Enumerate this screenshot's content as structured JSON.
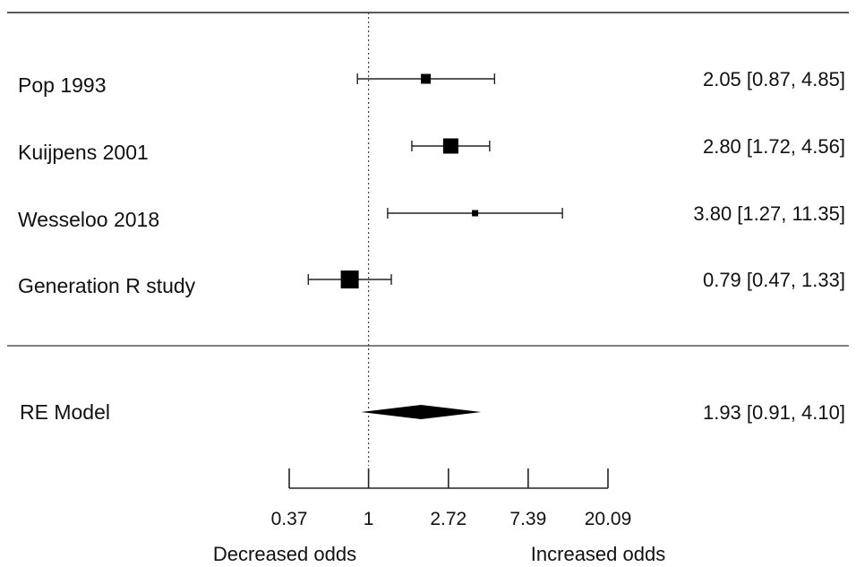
{
  "chart_data": {
    "type": "forest",
    "xscale": "log",
    "xlabel": "",
    "ylabel": "",
    "xlim": [
      0.37,
      20.09
    ],
    "reference_line": 1,
    "ticks": [
      {
        "value": 0.37,
        "label": "0.37"
      },
      {
        "value": 1,
        "label": "1"
      },
      {
        "value": 2.72,
        "label": "2.72"
      },
      {
        "value": 7.39,
        "label": "7.39"
      },
      {
        "value": 20.09,
        "label": "20.09"
      }
    ],
    "studies": [
      {
        "name": "Pop 1993",
        "estimate": 2.05,
        "lower": 0.87,
        "upper": 4.85,
        "ci_text": "2.05 [0.87,  4.85]",
        "weight": 0.55
      },
      {
        "name": "Kuijpens 2001",
        "estimate": 2.8,
        "lower": 1.72,
        "upper": 4.56,
        "ci_text": "2.80 [1.72,  4.56]",
        "weight": 0.85
      },
      {
        "name": "Wesseloo 2018",
        "estimate": 3.8,
        "lower": 1.27,
        "upper": 11.35,
        "ci_text": "3.80 [1.27, 11.35]",
        "weight": 0.3
      },
      {
        "name": "Generation R study",
        "estimate": 0.79,
        "lower": 0.47,
        "upper": 1.33,
        "ci_text": "0.79 [0.47,  1.33]",
        "weight": 1.0
      }
    ],
    "summary": {
      "name": "RE Model",
      "estimate": 1.93,
      "lower": 0.91,
      "upper": 4.1,
      "ci_text": "1.93 [0.91,  4.10]"
    },
    "direction_labels": {
      "left": "Decreased odds",
      "right": "Increased odds"
    }
  }
}
